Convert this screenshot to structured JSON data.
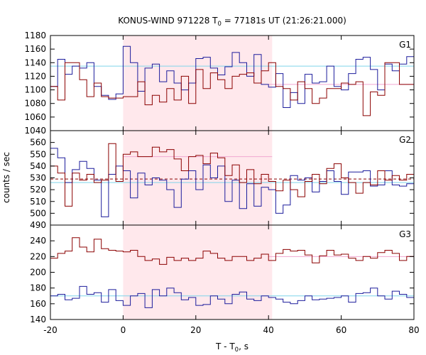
{
  "title": {
    "prefix": "KONUS-WIND 971228 T",
    "sub": "0",
    "suffix": " = 77181s UT (21:26:21.000)"
  },
  "colors": {
    "red": "#8b0000",
    "blue": "#1c1c9c",
    "cyan": "#7fd4ea",
    "pink": "#f0a8d0",
    "shade": "#ffe8ec",
    "axis": "#000000"
  },
  "chart_data": {
    "type": "line",
    "step": true,
    "xlabel": {
      "prefix": "T - T",
      "sub": "0",
      "suffix": ", s"
    },
    "ylabel": "counts / sec",
    "xlim": [
      -20,
      80
    ],
    "xticks": [
      -20,
      0,
      20,
      40,
      60,
      80
    ],
    "xtick_labels": [
      "-20",
      "0",
      "20",
      "40",
      "60",
      "80"
    ],
    "grid": false,
    "shaded_interval": [
      0,
      41
    ],
    "x": [
      -20,
      -18,
      -16,
      -14,
      -12,
      -10,
      -8,
      -6,
      -4,
      -2,
      0,
      2,
      4,
      6,
      8,
      10,
      12,
      14,
      16,
      18,
      20,
      22,
      24,
      26,
      28,
      30,
      32,
      34,
      36,
      38,
      40,
      42,
      44,
      46,
      48,
      50,
      52,
      54,
      56,
      58,
      60,
      62,
      64,
      66,
      68,
      70,
      72,
      74,
      76,
      78,
      80
    ],
    "panels": [
      {
        "label": "G1",
        "ylim": [
          1040,
          1180
        ],
        "yticks": [
          1040,
          1060,
          1080,
          1100,
          1120,
          1140,
          1160,
          1180
        ],
        "red": [
          1105,
          1085,
          1140,
          1140,
          1115,
          1090,
          1110,
          1090,
          1088,
          1088,
          1090,
          1090,
          1112,
          1078,
          1092,
          1082,
          1102,
          1085,
          1120,
          1080,
          1130,
          1102,
          1125,
          1115,
          1102,
          1120,
          1123,
          1125,
          1110,
          1128,
          1140,
          1105,
          1102,
          1085,
          1112,
          1102,
          1080,
          1088,
          1102,
          1102,
          1110,
          1108,
          1112,
          1062,
          1097,
          1092,
          1140,
          1140,
          1108,
          1108
        ],
        "blue": [
          1105,
          1145,
          1123,
          1135,
          1132,
          1140,
          1105,
          1092,
          1086,
          1094,
          1164,
          1140,
          1098,
          1132,
          1138,
          1112,
          1128,
          1110,
          1100,
          1110,
          1146,
          1148,
          1132,
          1122,
          1134,
          1155,
          1140,
          1120,
          1152,
          1108,
          1104,
          1124,
          1074,
          1096,
          1080,
          1123,
          1110,
          1112,
          1135,
          1105,
          1100,
          1124,
          1145,
          1148,
          1130,
          1100,
          1138,
          1128,
          1138,
          1149
        ],
        "red_mean": 1108,
        "blue_mean": 1135,
        "pink_level": 1108,
        "pink_range": [
          40,
          80
        ],
        "cyan_level": 1135
      },
      {
        "label": "G2",
        "ylim": [
          490,
          570
        ],
        "yticks": [
          490,
          500,
          510,
          520,
          530,
          540,
          550,
          560
        ],
        "red": [
          540,
          534,
          506,
          534,
          528,
          533,
          526,
          528,
          559,
          527,
          550,
          552,
          548,
          548,
          556,
          552,
          554,
          546,
          536,
          548,
          549,
          542,
          551,
          547,
          532,
          541,
          526,
          537,
          525,
          533,
          527,
          519,
          528,
          520,
          514,
          527,
          533,
          525,
          538,
          542,
          530,
          526,
          517,
          526,
          524,
          536,
          528,
          532,
          528,
          533
        ],
        "blue": [
          555,
          547,
          526,
          537,
          544,
          538,
          528,
          497,
          533,
          540,
          536,
          513,
          534,
          524,
          530,
          528,
          520,
          505,
          529,
          536,
          520,
          541,
          530,
          540,
          510,
          528,
          504,
          525,
          506,
          522,
          520,
          500,
          507,
          532,
          528,
          530,
          518,
          527,
          536,
          527,
          516,
          535,
          535,
          536,
          523,
          524,
          536,
          524,
          523,
          525
        ],
        "red_mean": 529,
        "blue_mean": 526,
        "pink_level": 548,
        "pink_range": [
          0,
          41
        ],
        "cyan_level": 526
      },
      {
        "label": "G3",
        "ylim": [
          140,
          260
        ],
        "yticks": [
          140,
          160,
          180,
          200,
          220,
          240
        ],
        "red": [
          218,
          224,
          227,
          244,
          232,
          226,
          242,
          230,
          228,
          227,
          226,
          228,
          220,
          215,
          217,
          210,
          219,
          215,
          218,
          215,
          218,
          227,
          224,
          218,
          215,
          220,
          220,
          215,
          218,
          223,
          215,
          224,
          229,
          227,
          228,
          222,
          212,
          221,
          228,
          222,
          223,
          218,
          215,
          220,
          218,
          225,
          228,
          224,
          215,
          220
        ],
        "blue": [
          170,
          172,
          165,
          167,
          182,
          172,
          174,
          162,
          178,
          164,
          158,
          170,
          173,
          155,
          178,
          170,
          180,
          174,
          165,
          168,
          158,
          159,
          170,
          166,
          160,
          172,
          175,
          166,
          164,
          170,
          168,
          166,
          162,
          160,
          164,
          170,
          165,
          166,
          167,
          168,
          170,
          162,
          173,
          174,
          180,
          170,
          166,
          176,
          172,
          168
        ],
        "red_mean": 220,
        "blue_mean": 170,
        "pink_level": 220,
        "pink_range": [
          40,
          80
        ],
        "cyan_level": 170
      }
    ]
  }
}
